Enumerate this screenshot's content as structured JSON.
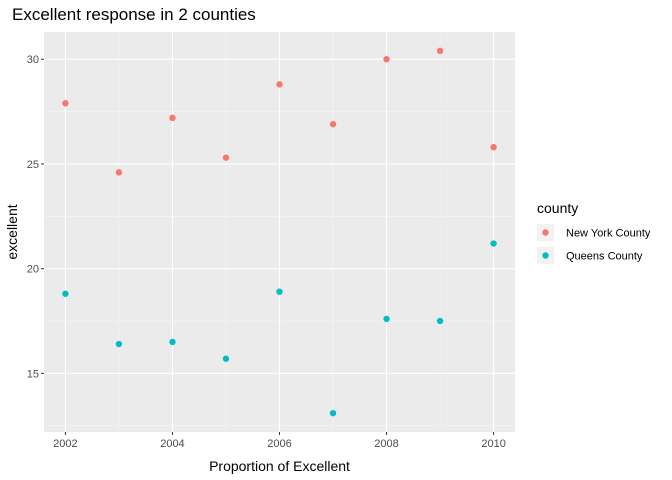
{
  "chart_data": {
    "type": "scatter",
    "title": "Excellent response in 2 counties",
    "xlabel": "Proportion of Excellent",
    "ylabel": "excellent",
    "xlim": [
      2001.6,
      2010.4
    ],
    "ylim": [
      12.2,
      31.3
    ],
    "x_ticks": [
      2002,
      2004,
      2006,
      2008,
      2010
    ],
    "y_ticks": [
      15,
      20,
      25,
      30
    ],
    "grid": true,
    "legend": {
      "title": "county",
      "position": "right"
    },
    "series": [
      {
        "name": "New York County",
        "color": "#F8766D",
        "points": [
          {
            "x": 2002,
            "y": 27.9
          },
          {
            "x": 2003,
            "y": 24.6
          },
          {
            "x": 2004,
            "y": 27.2
          },
          {
            "x": 2005,
            "y": 25.3
          },
          {
            "x": 2006,
            "y": 28.8
          },
          {
            "x": 2007,
            "y": 26.9
          },
          {
            "x": 2008,
            "y": 30.0
          },
          {
            "x": 2009,
            "y": 30.4
          },
          {
            "x": 2010,
            "y": 25.8
          }
        ]
      },
      {
        "name": "Queens County",
        "color": "#00BFC4",
        "points": [
          {
            "x": 2002,
            "y": 18.8
          },
          {
            "x": 2003,
            "y": 16.4
          },
          {
            "x": 2004,
            "y": 16.5
          },
          {
            "x": 2005,
            "y": 15.7
          },
          {
            "x": 2006,
            "y": 18.9
          },
          {
            "x": 2007,
            "y": 13.1
          },
          {
            "x": 2008,
            "y": 17.6
          },
          {
            "x": 2009,
            "y": 17.5
          },
          {
            "x": 2010,
            "y": 21.2
          }
        ]
      }
    ]
  }
}
